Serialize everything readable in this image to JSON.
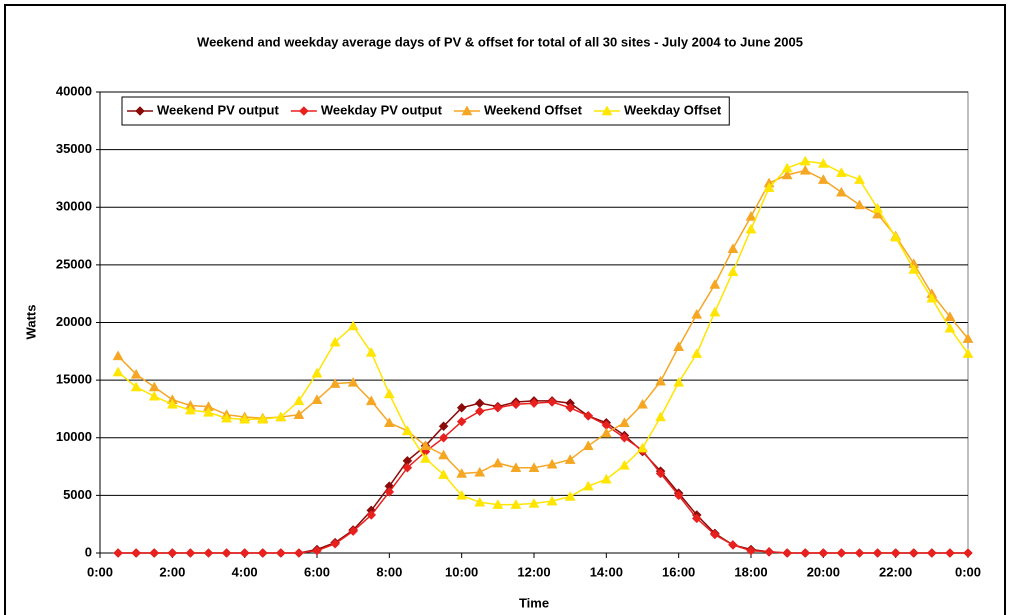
{
  "chart_data": {
    "type": "line",
    "title": "Weekend and weekday average days of PV & offset for total of all 30 sites - July 2004 to June 2005",
    "x_label": "Time",
    "y_label": "Watts",
    "x": [
      0.5,
      1,
      1.5,
      2,
      2.5,
      3,
      3.5,
      4,
      4.5,
      5,
      5.5,
      6,
      6.5,
      7,
      7.5,
      8,
      8.5,
      9,
      9.5,
      10,
      10.5,
      11,
      11.5,
      12,
      12.5,
      13,
      13.5,
      14,
      14.5,
      15,
      15.5,
      16,
      16.5,
      17,
      17.5,
      18,
      18.5,
      19,
      19.5,
      20,
      20.5,
      21,
      21.5,
      22,
      22.5,
      23,
      23.5,
      24
    ],
    "series": [
      {
        "name": "Weekend PV output",
        "color": "#8b0a0a",
        "marker": "diamond",
        "values": [
          0,
          0,
          0,
          0,
          0,
          0,
          0,
          0,
          0,
          0,
          0,
          300,
          900,
          2000,
          3700,
          5800,
          8000,
          9300,
          11000,
          12600,
          13000,
          12700,
          13100,
          13200,
          13200,
          13000,
          11900,
          11300,
          10200,
          8800,
          7100,
          5200,
          3300,
          1700,
          700,
          300,
          100,
          0,
          0,
          0,
          0,
          0,
          0,
          0,
          0,
          0,
          0,
          0
        ]
      },
      {
        "name": "Weekday PV output",
        "color": "#e8201e",
        "marker": "diamond",
        "values": [
          0,
          0,
          0,
          0,
          0,
          0,
          0,
          0,
          0,
          0,
          0,
          200,
          800,
          1900,
          3300,
          5300,
          7400,
          8800,
          10000,
          11400,
          12300,
          12600,
          12900,
          13000,
          13100,
          12600,
          11900,
          11100,
          10000,
          8900,
          6900,
          5000,
          3000,
          1600,
          700,
          200,
          100,
          0,
          0,
          0,
          0,
          0,
          0,
          0,
          0,
          0,
          0,
          0
        ]
      },
      {
        "name": "Weekend Offset",
        "color": "#f5a623",
        "marker": "triangle",
        "values": [
          17100,
          15500,
          14400,
          13300,
          12800,
          12700,
          12000,
          11800,
          11700,
          11800,
          12000,
          13300,
          14700,
          14800,
          13200,
          11300,
          10600,
          9300,
          8500,
          6900,
          7000,
          7800,
          7400,
          7400,
          7700,
          8100,
          9300,
          10400,
          11300,
          12900,
          14900,
          17900,
          20700,
          23300,
          26400,
          29200,
          32100,
          32800,
          33200,
          32400,
          31300,
          30200,
          29400,
          27500,
          25100,
          22500,
          20500,
          18600
        ]
      },
      {
        "name": "Weekday Offset",
        "color": "#ffe500",
        "marker": "triangle",
        "values": [
          15700,
          14400,
          13600,
          12900,
          12400,
          12200,
          11700,
          11600,
          11600,
          11800,
          13200,
          15600,
          18300,
          19700,
          17400,
          13800,
          10600,
          8200,
          6800,
          5000,
          4400,
          4200,
          4200,
          4300,
          4500,
          4900,
          5800,
          6400,
          7600,
          9100,
          11800,
          14800,
          17300,
          20900,
          24400,
          28100,
          31700,
          33400,
          34000,
          33800,
          33000,
          32400,
          29900,
          27400,
          24600,
          22100,
          19500,
          17300
        ]
      }
    ],
    "xlim": [
      0,
      24
    ],
    "xticks": [
      {
        "value": 0,
        "label": "0:00"
      },
      {
        "value": 2,
        "label": "2:00"
      },
      {
        "value": 4,
        "label": "4:00"
      },
      {
        "value": 6,
        "label": "6:00"
      },
      {
        "value": 8,
        "label": "8:00"
      },
      {
        "value": 10,
        "label": "10:00"
      },
      {
        "value": 12,
        "label": "12:00"
      },
      {
        "value": 14,
        "label": "14:00"
      },
      {
        "value": 16,
        "label": "16:00"
      },
      {
        "value": 18,
        "label": "18:00"
      },
      {
        "value": 20,
        "label": "20:00"
      },
      {
        "value": 22,
        "label": "22:00"
      },
      {
        "value": 24,
        "label": "0:00"
      }
    ],
    "ylim": [
      0,
      40000
    ],
    "yticks": [
      0,
      5000,
      10000,
      15000,
      20000,
      25000,
      30000,
      35000,
      40000
    ],
    "grid": true,
    "legend": "top-left"
  }
}
